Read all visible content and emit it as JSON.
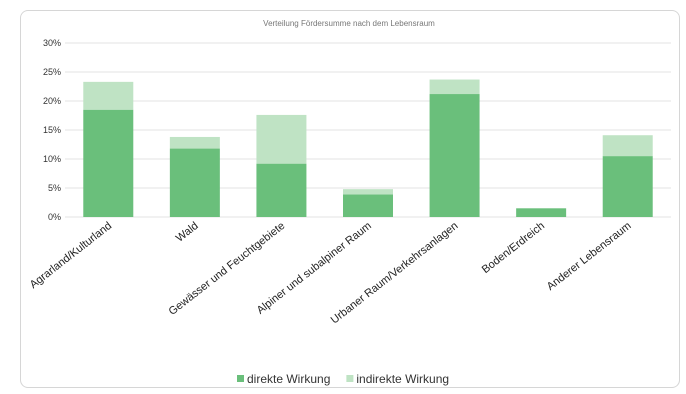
{
  "chart_data": {
    "type": "bar",
    "stacked": true,
    "title": "Verteilung Fördersumme nach dem Lebensraum",
    "categories": [
      "Agrarland/Kulturland",
      "Wald",
      "Gewässer und Feuchtgebiete",
      "Alpiner und subalpiner Raum",
      "Urbaner Raum/Verkehrsanlagen",
      "Boden/Erdreich",
      "Anderer Lebensraum"
    ],
    "series": [
      {
        "name": "direkte Wirkung",
        "color": "#6abf7b",
        "values": [
          18.5,
          11.8,
          9.2,
          3.9,
          21.2,
          1.5,
          10.5
        ]
      },
      {
        "name": "indirekte Wirkung",
        "color": "#bfe3c4",
        "values": [
          4.8,
          2.0,
          8.4,
          0.9,
          2.5,
          0.0,
          3.6
        ]
      }
    ],
    "yticks": [
      "0%",
      "5%",
      "10%",
      "15%",
      "20%",
      "25%",
      "30%"
    ],
    "ylim": [
      0,
      30
    ],
    "grid": true,
    "legend": "bottom"
  }
}
